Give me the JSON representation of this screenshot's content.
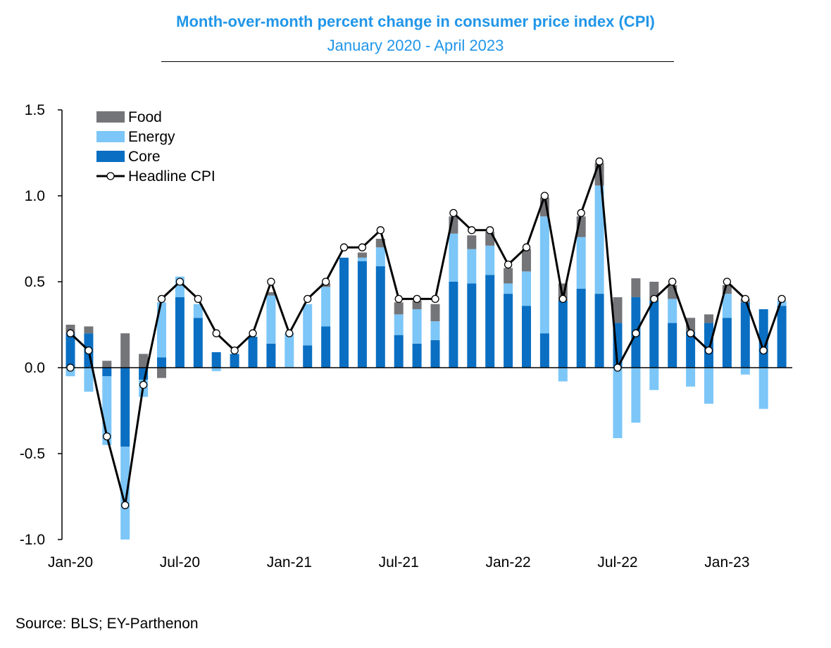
{
  "title": "Month-over-month percent change in consumer price index (CPI)",
  "subtitle": "January 2020 - April 2023",
  "source": "Source: BLS; EY-Parthenon",
  "colors": {
    "food": "#747579",
    "energy": "#7cc6f8",
    "core": "#0a6fc2",
    "line": "#000000",
    "title": "#2196e8"
  },
  "chart_data": {
    "type": "bar",
    "stacked": true,
    "title": "Month-over-month percent change in consumer price index (CPI)",
    "subtitle": "January 2020 - April 2023",
    "ylim": [
      -1.0,
      1.5
    ],
    "yticks": [
      -1.0,
      -0.5,
      0.0,
      0.5,
      1.0,
      1.5
    ],
    "ytick_labels": [
      "-1.0",
      "-0.5",
      "0.0",
      "0.5",
      "1.0",
      "1.5"
    ],
    "xtick_labels": [
      "Jan-20",
      "Jul-20",
      "Jan-21",
      "Jul-21",
      "Jan-22",
      "Jul-22",
      "Jan-23"
    ],
    "xtick_indices": [
      0,
      6,
      12,
      18,
      24,
      30,
      36
    ],
    "legend_position": "top-left",
    "categories": [
      "Jan-20",
      "Feb-20",
      "Mar-20",
      "Apr-20",
      "May-20",
      "Jun-20",
      "Jul-20",
      "Aug-20",
      "Sep-20",
      "Oct-20",
      "Nov-20",
      "Dec-20",
      "Jan-21",
      "Feb-21",
      "Mar-21",
      "Apr-21",
      "May-21",
      "Jun-21",
      "Jul-21",
      "Aug-21",
      "Sep-21",
      "Oct-21",
      "Nov-21",
      "Dec-21",
      "Jan-22",
      "Feb-22",
      "Mar-22",
      "Apr-22",
      "May-22",
      "Jun-22",
      "Jul-22",
      "Aug-22",
      "Sep-22",
      "Oct-22",
      "Nov-22",
      "Dec-22",
      "Jan-23",
      "Feb-23",
      "Mar-23",
      "Apr-23"
    ],
    "series": [
      {
        "name": "Food",
        "values": [
          0.05,
          0.04,
          0.04,
          0.2,
          0.08,
          -0.06,
          0.0,
          0.0,
          0.0,
          0.0,
          0.0,
          0.02,
          0.0,
          0.0,
          0.02,
          0.0,
          0.03,
          0.05,
          0.07,
          0.05,
          0.1,
          0.1,
          0.08,
          0.08,
          0.09,
          0.13,
          0.11,
          0.1,
          0.12,
          0.13,
          0.15,
          0.11,
          0.11,
          0.08,
          0.08,
          0.05,
          0.05,
          0.02,
          0.0,
          0.0
        ]
      },
      {
        "name": "Energy",
        "values": [
          -0.05,
          -0.14,
          -0.4,
          -0.54,
          -0.1,
          0.32,
          0.12,
          0.08,
          -0.02,
          0.0,
          0.0,
          0.28,
          0.2,
          0.24,
          0.23,
          0.0,
          0.02,
          0.11,
          0.12,
          0.2,
          0.11,
          0.28,
          0.2,
          0.17,
          0.06,
          0.2,
          0.68,
          -0.08,
          0.3,
          0.63,
          -0.41,
          -0.32,
          -0.13,
          0.14,
          -0.11,
          -0.21,
          0.14,
          -0.04,
          -0.24,
          0.03
        ]
      },
      {
        "name": "Core",
        "values": [
          0.2,
          0.2,
          -0.05,
          -0.46,
          -0.07,
          0.06,
          0.41,
          0.29,
          0.09,
          0.08,
          0.18,
          0.14,
          0.0,
          0.13,
          0.24,
          0.64,
          0.62,
          0.59,
          0.19,
          0.14,
          0.16,
          0.5,
          0.49,
          0.54,
          0.43,
          0.36,
          0.2,
          0.39,
          0.46,
          0.43,
          0.26,
          0.41,
          0.39,
          0.26,
          0.21,
          0.26,
          0.29,
          0.38,
          0.34,
          0.36
        ]
      },
      {
        "name": "Headline CPI",
        "type": "line",
        "values": [
          0.2,
          0.1,
          -0.4,
          -0.8,
          -0.1,
          0.4,
          0.5,
          0.4,
          0.2,
          0.1,
          0.2,
          0.5,
          0.2,
          0.4,
          0.5,
          0.7,
          0.7,
          0.8,
          0.4,
          0.4,
          0.4,
          0.9,
          0.8,
          0.8,
          0.6,
          0.7,
          1.0,
          0.4,
          0.9,
          1.2,
          0.0,
          0.2,
          0.4,
          0.5,
          0.2,
          0.1,
          0.5,
          0.4,
          0.1,
          0.4
        ]
      }
    ],
    "annotations": [
      {
        "type": "point",
        "x_index": 0,
        "y": 0.0
      }
    ]
  }
}
